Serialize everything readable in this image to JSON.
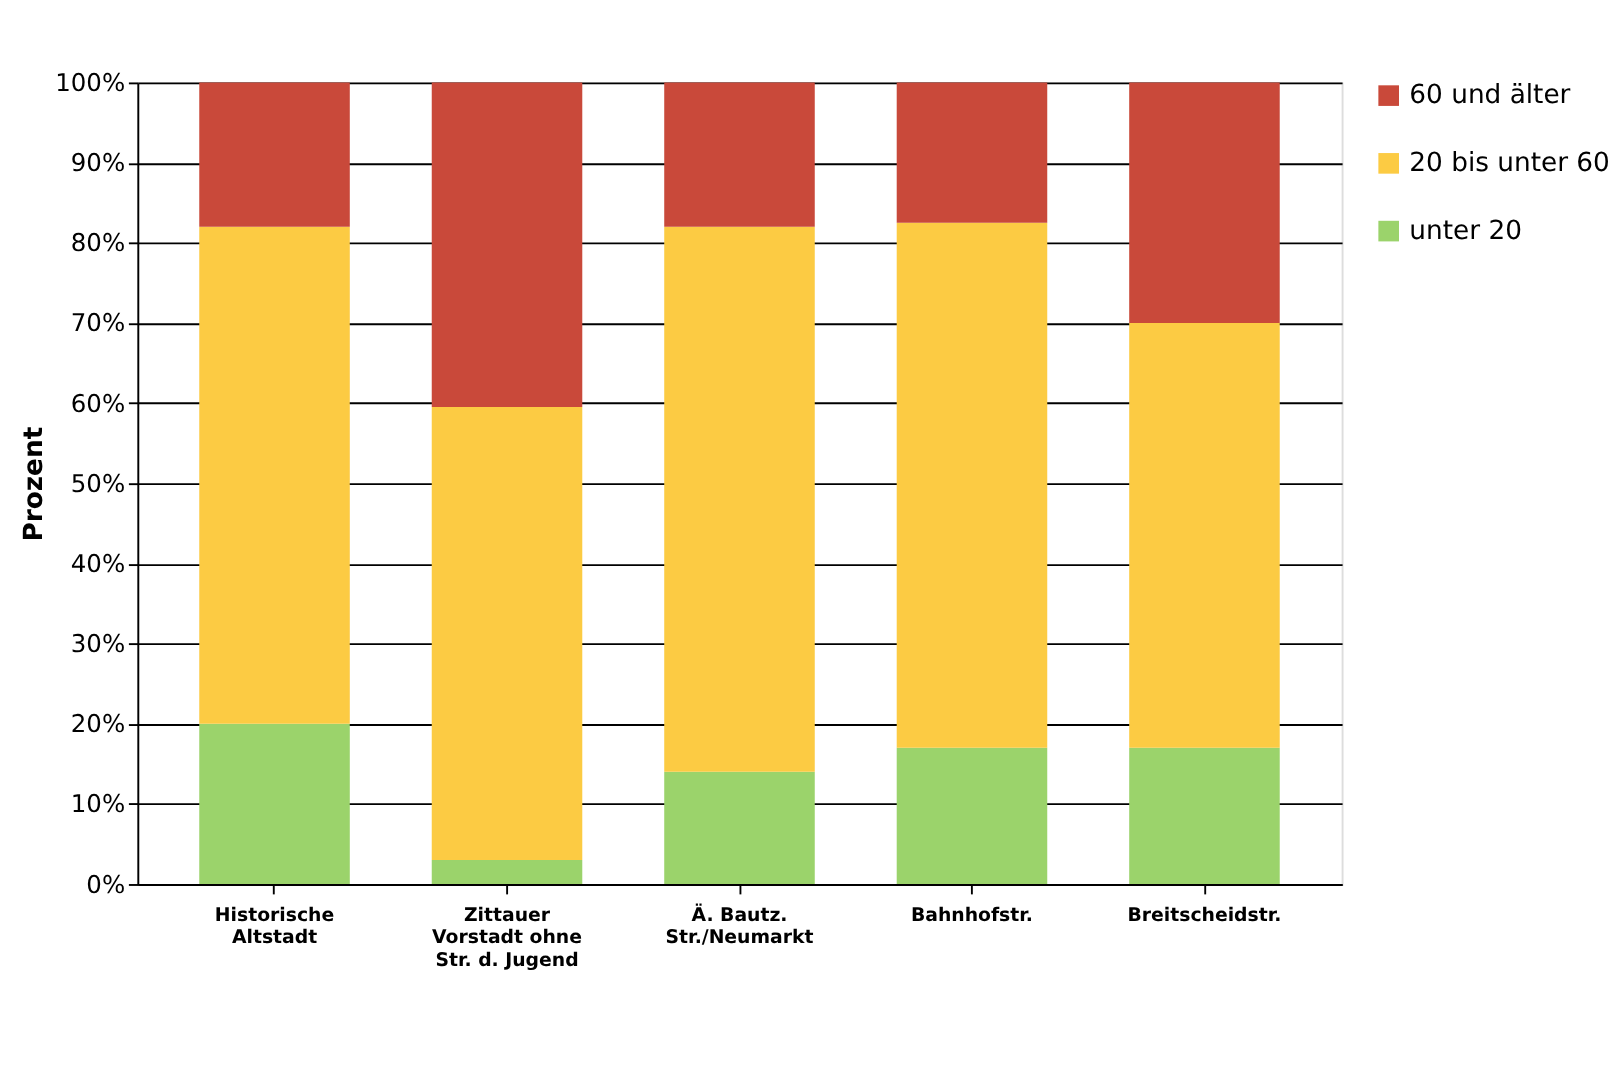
{
  "chart_data": {
    "type": "bar",
    "stacked": true,
    "ylabel": "Prozent",
    "categories": [
      "Historische\nAltstadt",
      "Zittauer\nVorstadt ohne\nStr. d. Jugend",
      "Ä. Bautz.\nStr./Neumarkt",
      "Bahnhofstr.",
      "Breitscheidstr."
    ],
    "series": [
      {
        "name": "unter 20",
        "color": "#9bd36b",
        "values": [
          20,
          3,
          14,
          17,
          17
        ]
      },
      {
        "name": "20 bis unter 60",
        "color": "#fccb43",
        "values": [
          62,
          56.5,
          68,
          65.5,
          53
        ]
      },
      {
        "name": "60 und älter",
        "color": "#c9493a",
        "values": [
          18,
          40.5,
          18,
          17.5,
          30
        ]
      }
    ],
    "ylim": [
      0,
      100
    ],
    "yticks": [
      {
        "value": 0,
        "label": "0%"
      },
      {
        "value": 10,
        "label": "10%"
      },
      {
        "value": 20,
        "label": "20%"
      },
      {
        "value": 30,
        "label": "30%"
      },
      {
        "value": 40,
        "label": "40%"
      },
      {
        "value": 50,
        "label": "50%"
      },
      {
        "value": 60,
        "label": "60%"
      },
      {
        "value": 70,
        "label": "70%"
      },
      {
        "value": 80,
        "label": "80%"
      },
      {
        "value": 90,
        "label": "90%"
      },
      {
        "value": 100,
        "label": "100%"
      }
    ],
    "grid": "y",
    "legend": "right"
  }
}
